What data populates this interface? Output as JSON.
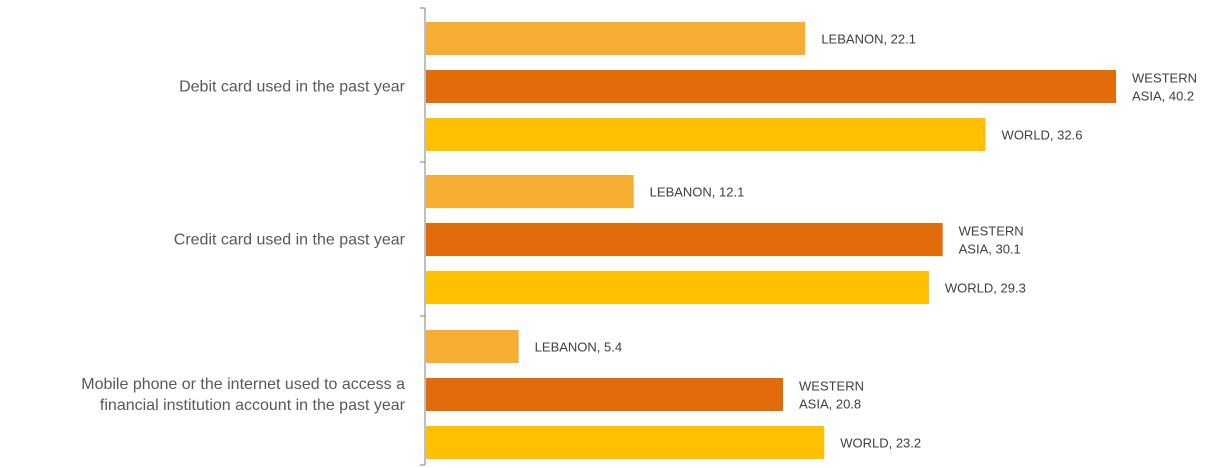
{
  "chart_data": {
    "type": "bar",
    "orientation": "horizontal",
    "categories": [
      [
        "Debit card used in the past year"
      ],
      [
        "Credit card used in the past year"
      ],
      [
        "Mobile phone or the internet used to access a",
        "financial institution account in the past year"
      ]
    ],
    "series": [
      {
        "name": "LEBANON",
        "values": [
          22.1,
          12.1,
          5.4
        ],
        "color": "#F5AD32"
      },
      {
        "name": "WESTERN ASIA",
        "values": [
          40.2,
          30.1,
          20.8
        ],
        "color": "#E36C0A"
      },
      {
        "name": "WORLD",
        "values": [
          32.6,
          29.3,
          23.2
        ],
        "color": "#FFC000"
      }
    ],
    "data_labels": [
      [
        [
          "LEBANON, 22.1"
        ],
        [
          "WESTERN",
          "ASIA, 40.2"
        ],
        [
          "WORLD, 32.6"
        ]
      ],
      [
        [
          "LEBANON, 12.1"
        ],
        [
          "WESTERN",
          "ASIA, 30.1"
        ],
        [
          "WORLD, 29.3"
        ]
      ],
      [
        [
          "LEBANON, 5.4"
        ],
        [
          "WESTERN",
          "ASIA, 20.8"
        ],
        [
          "WORLD, 23.2"
        ]
      ]
    ],
    "xlim": [
      0,
      40.2
    ],
    "grid": false,
    "legend": "none"
  }
}
